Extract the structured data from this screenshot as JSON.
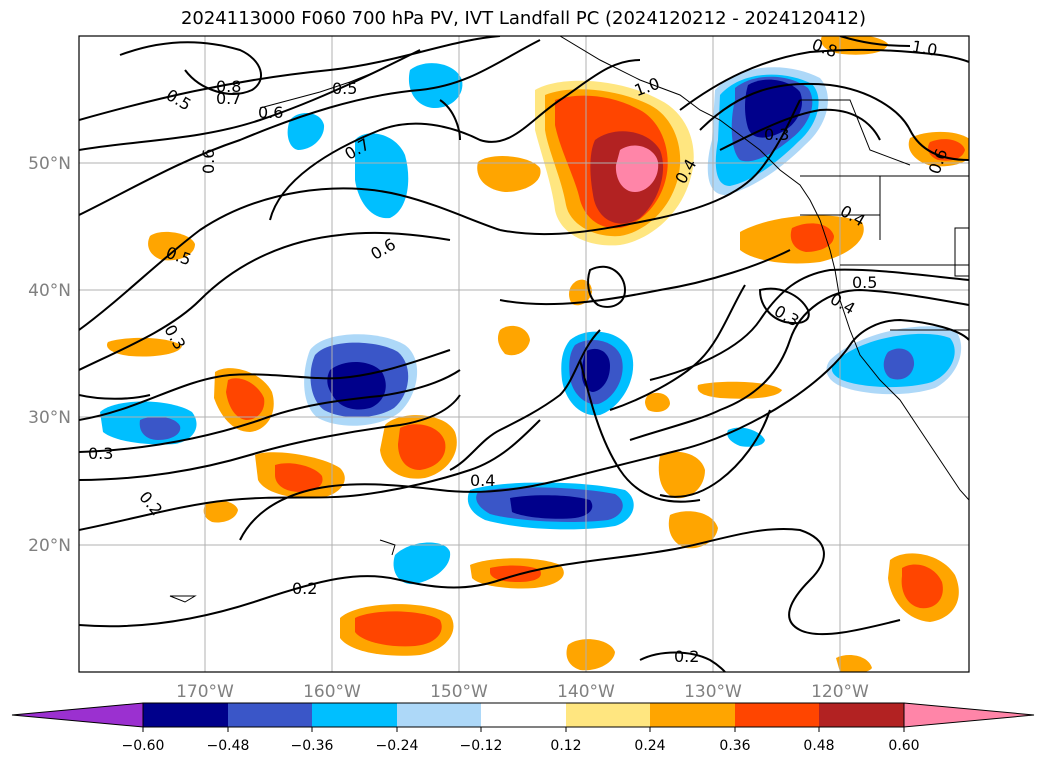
{
  "title": "2024113000 F060 700 hPa PV, IVT Landfall PC (2024120212 - 2024120412)",
  "latitude_labels": [
    "50°N",
    "40°N",
    "30°N",
    "20°N"
  ],
  "longitude_labels": [
    "170°W",
    "160°W",
    "150°W",
    "140°W",
    "130°W",
    "120°W"
  ],
  "contour_labels": [
    "0.8",
    "0.7",
    "0.5",
    "0.5",
    "0.6",
    "0.6",
    "0.7",
    "0.6",
    "0.5",
    "1.0",
    "0.8",
    "1.0",
    "0.3",
    "0.4",
    "0.6",
    "0.4",
    "0.5",
    "0.4",
    "0.3",
    "0.3",
    "0.3",
    "0.2",
    "0.4",
    "0.2",
    "0.2"
  ],
  "colorbar": {
    "ticks": [
      "−0.60",
      "−0.48",
      "−0.36",
      "−0.24",
      "−0.12",
      "0.12",
      "0.24",
      "0.36",
      "0.48",
      "0.60"
    ],
    "colors": [
      "#9b30d0",
      "#00008b",
      "#3a56c8",
      "#00bfff",
      "#add8f8",
      "#ffffff",
      "#ffe680",
      "#ffa500",
      "#ff4500",
      "#b22222",
      "#ff85a8"
    ]
  }
}
